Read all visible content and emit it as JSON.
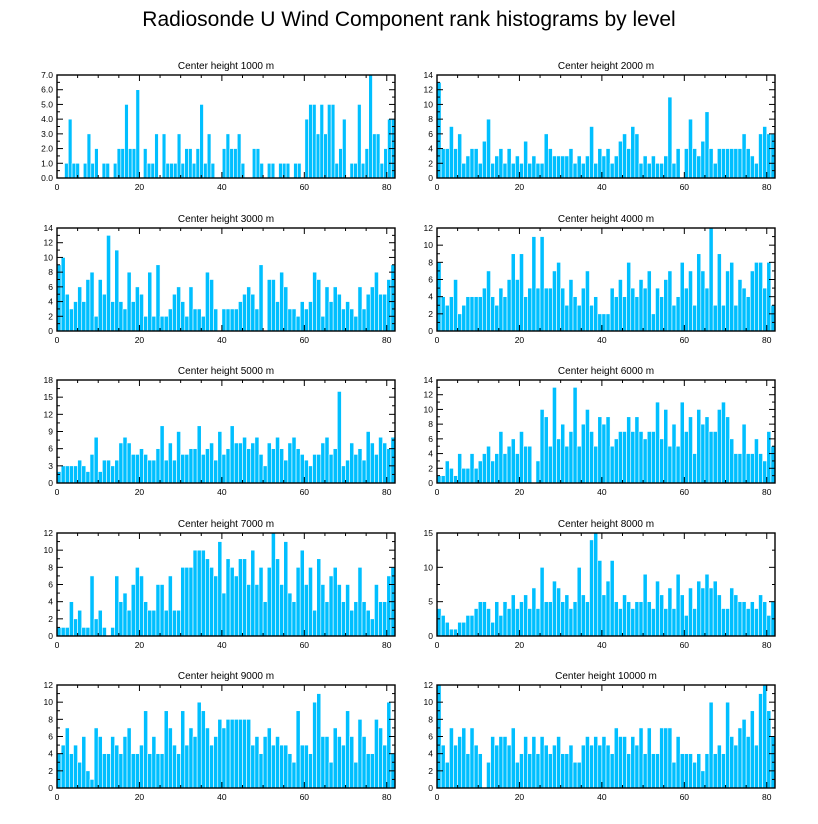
{
  "title": "Radiosonde U Wind Component rank histograms by level",
  "chart_data": [
    {
      "type": "bar",
      "title": "Center height 1000 m",
      "xlim": [
        0,
        82
      ],
      "xticks": [
        0,
        20,
        40,
        60,
        80
      ],
      "ylim": [
        0,
        7
      ],
      "yticks": [
        0,
        1,
        2,
        3,
        4,
        5,
        6,
        7
      ],
      "ytick_labels": [
        "0.0",
        "1.0",
        "2.0",
        "3.0",
        "4.0",
        "5.0",
        "6.0",
        "7.0"
      ],
      "values": [
        0,
        0,
        1,
        4,
        1,
        1,
        0,
        1,
        3,
        1,
        2,
        0,
        1,
        1,
        0,
        1,
        2,
        2,
        5,
        2,
        2,
        6,
        0,
        2,
        1,
        1,
        3,
        0,
        3,
        1,
        1,
        1,
        3,
        1,
        2,
        2,
        1,
        2,
        5,
        1,
        3,
        1,
        0,
        0,
        2,
        3,
        2,
        2,
        3,
        1,
        0,
        0,
        2,
        2,
        1,
        0,
        1,
        1,
        0,
        1,
        1,
        1,
        0,
        1,
        1,
        0,
        4,
        5,
        5,
        3,
        5,
        3,
        5,
        5,
        1,
        2,
        4,
        0,
        1,
        1,
        5,
        1,
        2,
        7,
        3,
        3,
        1,
        2,
        4,
        4
      ]
    },
    {
      "type": "bar",
      "title": "Center height 2000 m",
      "xlim": [
        0,
        82
      ],
      "xticks": [
        0,
        20,
        40,
        60,
        80
      ],
      "ylim": [
        0,
        14
      ],
      "yticks": [
        0,
        2,
        4,
        6,
        8,
        10,
        12,
        14
      ],
      "values": [
        13,
        4,
        4,
        7,
        4,
        6,
        2,
        3,
        4,
        4,
        2,
        5,
        8,
        2,
        3,
        4,
        2,
        4,
        2,
        3,
        2,
        5,
        2,
        3,
        2,
        2,
        6,
        4,
        3,
        3,
        3,
        3,
        4,
        2,
        3,
        2,
        3,
        7,
        2,
        4,
        3,
        4,
        2,
        3,
        5,
        6,
        4,
        7,
        6,
        2,
        3,
        2,
        3,
        2,
        2,
        3,
        11,
        2,
        4,
        0,
        4,
        8,
        4,
        3,
        5,
        9,
        4,
        2,
        4,
        4,
        4,
        4,
        4,
        4,
        6,
        4,
        3,
        2,
        6,
        7,
        6,
        6
      ]
    },
    {
      "type": "bar",
      "title": "Center height 3000 m",
      "xlim": [
        0,
        82
      ],
      "xticks": [
        0,
        20,
        40,
        60,
        80
      ],
      "ylim": [
        0,
        14
      ],
      "yticks": [
        0,
        2,
        4,
        6,
        8,
        10,
        12,
        14
      ],
      "values": [
        9,
        10,
        5,
        3,
        4,
        6,
        4,
        7,
        8,
        2,
        7,
        5,
        13,
        4,
        11,
        4,
        3,
        8,
        4,
        6,
        5,
        2,
        8,
        2,
        9,
        2,
        2,
        3,
        5,
        6,
        4,
        2,
        6,
        3,
        3,
        2,
        8,
        7,
        3,
        0,
        3,
        3,
        3,
        3,
        4,
        5,
        6,
        5,
        3,
        9,
        0,
        7,
        7,
        4,
        8,
        6,
        3,
        3,
        2,
        4,
        3,
        4,
        8,
        7,
        2,
        6,
        4,
        6,
        5,
        3,
        4,
        3,
        2,
        6,
        3,
        5,
        6,
        8,
        5,
        5,
        7,
        9
      ]
    },
    {
      "type": "bar",
      "title": "Center height 4000 m",
      "xlim": [
        0,
        82
      ],
      "xticks": [
        0,
        20,
        40,
        60,
        80
      ],
      "ylim": [
        0,
        12
      ],
      "yticks": [
        0,
        2,
        4,
        6,
        8,
        10,
        12
      ],
      "values": [
        8,
        4,
        3,
        4,
        6,
        2,
        3,
        4,
        4,
        4,
        4,
        5,
        7,
        4,
        3,
        5,
        4,
        6,
        9,
        6,
        9,
        4,
        5,
        11,
        5,
        11,
        5,
        5,
        7,
        8,
        5,
        3,
        6,
        4,
        3,
        5,
        7,
        3,
        4,
        2,
        2,
        2,
        5,
        4,
        6,
        4,
        8,
        5,
        4,
        6,
        5,
        7,
        2,
        5,
        4,
        6,
        7,
        3,
        4,
        8,
        5,
        7,
        3,
        9,
        7,
        5,
        12,
        3,
        9,
        3,
        7,
        8,
        3,
        6,
        5,
        4,
        7,
        8,
        8,
        5,
        8,
        3
      ]
    },
    {
      "type": "bar",
      "title": "Center height 5000 m",
      "xlim": [
        0,
        82
      ],
      "xticks": [
        0,
        20,
        40,
        60,
        80
      ],
      "ylim": [
        0,
        18
      ],
      "yticks": [
        0,
        3,
        6,
        9,
        12,
        15,
        18
      ],
      "values": [
        2,
        3,
        3,
        3,
        3,
        4,
        3,
        2,
        5,
        8,
        2,
        4,
        4,
        3,
        4,
        7,
        8,
        7,
        5,
        5,
        6,
        5,
        4,
        4,
        6,
        10,
        4,
        7,
        4,
        9,
        5,
        5,
        6,
        6,
        10,
        5,
        6,
        7,
        4,
        9,
        5,
        6,
        10,
        7,
        7,
        8,
        6,
        7,
        8,
        5,
        3,
        7,
        6,
        8,
        6,
        4,
        7,
        8,
        6,
        5,
        4,
        3,
        5,
        5,
        7,
        8,
        5,
        6,
        16,
        3,
        4,
        7,
        5,
        6,
        4,
        9,
        7,
        5,
        8,
        7,
        6,
        8
      ]
    },
    {
      "type": "bar",
      "title": "Center height 6000 m",
      "xlim": [
        0,
        82
      ],
      "xticks": [
        0,
        20,
        40,
        60,
        80
      ],
      "ylim": [
        0,
        14
      ],
      "yticks": [
        0,
        2,
        4,
        6,
        8,
        10,
        12,
        14
      ],
      "values": [
        1,
        1,
        3,
        2,
        1,
        4,
        2,
        2,
        4,
        2,
        3,
        4,
        5,
        3,
        4,
        7,
        4,
        5,
        6,
        4,
        7,
        5,
        5,
        0,
        3,
        10,
        9,
        5,
        13,
        6,
        8,
        5,
        7,
        13,
        5,
        8,
        10,
        7,
        5,
        9,
        8,
        9,
        5,
        6,
        7,
        7,
        9,
        7,
        9,
        7,
        6,
        7,
        7,
        11,
        6,
        10,
        5,
        8,
        5,
        11,
        7,
        9,
        4,
        10,
        8,
        9,
        7,
        7,
        10,
        11,
        9,
        6,
        4,
        4,
        8,
        4,
        4,
        6,
        4,
        3,
        7,
        5
      ]
    },
    {
      "type": "bar",
      "title": "Center height 7000 m",
      "xlim": [
        0,
        82
      ],
      "xticks": [
        0,
        20,
        40,
        60,
        80
      ],
      "ylim": [
        0,
        12
      ],
      "yticks": [
        0,
        2,
        4,
        6,
        8,
        10,
        12
      ],
      "values": [
        1,
        1,
        1,
        4,
        2,
        3,
        1,
        1,
        7,
        2,
        3,
        1,
        0,
        1,
        7,
        4,
        5,
        3,
        6,
        8,
        7,
        4,
        3,
        3,
        6,
        6,
        3,
        7,
        3,
        3,
        8,
        8,
        8,
        10,
        10,
        10,
        9,
        8,
        7,
        11,
        5,
        9,
        8,
        7,
        9,
        9,
        6,
        10,
        6,
        8,
        4,
        8,
        12,
        9,
        6,
        11,
        5,
        4,
        8,
        10,
        6,
        8,
        3,
        9,
        6,
        4,
        7,
        8,
        6,
        4,
        6,
        3,
        4,
        8,
        4,
        3,
        2,
        6,
        4,
        4,
        7,
        8
      ]
    },
    {
      "type": "bar",
      "title": "Center height 8000 m",
      "xlim": [
        0,
        82
      ],
      "xticks": [
        0,
        20,
        40,
        60,
        80
      ],
      "ylim": [
        0,
        15
      ],
      "yticks": [
        0,
        5,
        10,
        15
      ],
      "values": [
        4,
        3,
        2,
        1,
        1,
        2,
        2,
        3,
        3,
        4,
        5,
        5,
        4,
        2,
        5,
        3,
        5,
        4,
        6,
        4,
        5,
        6,
        4,
        7,
        4,
        10,
        5,
        5,
        8,
        7,
        5,
        6,
        4,
        5,
        10,
        6,
        5,
        14,
        15,
        11,
        6,
        8,
        11,
        5,
        4,
        6,
        5,
        4,
        5,
        5,
        9,
        5,
        4,
        8,
        6,
        4,
        7,
        4,
        9,
        6,
        3,
        7,
        4,
        8,
        7,
        9,
        7,
        8,
        6,
        4,
        4,
        7,
        6,
        5,
        5,
        4,
        5,
        4,
        6,
        5,
        3,
        5
      ]
    },
    {
      "type": "bar",
      "title": "Center height 9000 m",
      "xlim": [
        0,
        82
      ],
      "xticks": [
        0,
        20,
        40,
        60,
        80
      ],
      "ylim": [
        0,
        12
      ],
      "yticks": [
        0,
        2,
        4,
        6,
        8,
        10,
        12
      ],
      "values": [
        4,
        5,
        7,
        4,
        5,
        3,
        6,
        2,
        1,
        7,
        6,
        4,
        4,
        6,
        5,
        4,
        6,
        7,
        4,
        4,
        5,
        9,
        4,
        6,
        4,
        4,
        9,
        7,
        5,
        4,
        9,
        5,
        7,
        6,
        10,
        9,
        7,
        5,
        6,
        8,
        7,
        8,
        8,
        8,
        8,
        8,
        8,
        5,
        6,
        4,
        6,
        7,
        5,
        6,
        5,
        5,
        4,
        3,
        9,
        5,
        5,
        4,
        10,
        11,
        6,
        6,
        3,
        7,
        6,
        5,
        9,
        6,
        3,
        8,
        6,
        4,
        4,
        8,
        7,
        5,
        10,
        4
      ]
    },
    {
      "type": "bar",
      "title": "Center height 10000 m",
      "xlim": [
        0,
        82
      ],
      "xticks": [
        0,
        20,
        40,
        60,
        80
      ],
      "ylim": [
        0,
        12
      ],
      "yticks": [
        0,
        2,
        4,
        6,
        8,
        10,
        12
      ],
      "values": [
        12,
        5,
        3,
        7,
        5,
        6,
        7,
        4,
        7,
        5,
        4,
        0,
        3,
        6,
        5,
        6,
        6,
        5,
        7,
        3,
        4,
        6,
        4,
        6,
        4,
        6,
        5,
        4,
        5,
        6,
        4,
        4,
        5,
        3,
        3,
        5,
        6,
        5,
        6,
        5,
        6,
        5,
        4,
        7,
        6,
        6,
        4,
        6,
        5,
        7,
        4,
        7,
        4,
        4,
        7,
        7,
        7,
        3,
        6,
        4,
        4,
        4,
        3,
        4,
        2,
        4,
        10,
        4,
        5,
        4,
        10,
        6,
        5,
        7,
        8,
        6,
        9,
        5,
        11,
        12,
        9,
        6
      ]
    }
  ]
}
